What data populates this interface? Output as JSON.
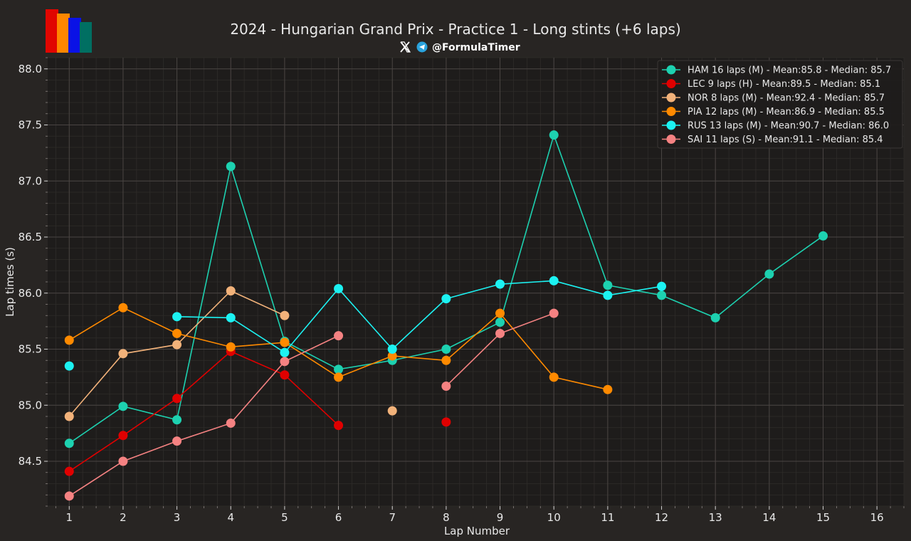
{
  "header": {
    "title": "2024 - Hungarian Grand Prix - Practice 1 - Long stints (+6 laps)",
    "handle": "@FormulaTimer",
    "social_icons": [
      "x-logo-icon",
      "telegram-icon"
    ]
  },
  "colors": {
    "background": "#282523",
    "plot_background": "#1e1c1b",
    "grid_major": "#4a4543",
    "grid_minor": "#2f2c2a",
    "text": "#e8e8e8",
    "logo_bars": [
      "#e10600",
      "#ff8700",
      "#0a12e6",
      "#006f62"
    ]
  },
  "chart_data": {
    "type": "line",
    "title": "2024 - Hungarian Grand Prix - Practice 1 - Long stints (+6 laps)",
    "xlabel": "Lap Number",
    "ylabel": "Lap times (s)",
    "xlim": [
      0.6,
      16.5
    ],
    "ylim": [
      84.1,
      88.1
    ],
    "x_ticks": [
      1,
      2,
      3,
      4,
      5,
      6,
      7,
      8,
      9,
      10,
      11,
      12,
      13,
      14,
      15,
      16
    ],
    "y_ticks": [
      84.5,
      85.0,
      85.5,
      86.0,
      86.5,
      87.0,
      87.5,
      88.0
    ],
    "y_tick_labels": [
      "84.5",
      "85.0",
      "85.5",
      "86.0",
      "86.5",
      "87.0",
      "87.5",
      "88.0"
    ],
    "grid": true,
    "legend_position": "top-right",
    "series": [
      {
        "name": "HAM 16 laps (M) - Mean:85.8 - Median: 85.7",
        "color": "#1dd1b0",
        "points": [
          [
            1,
            84.66
          ],
          [
            2,
            84.99
          ],
          [
            3,
            84.87
          ],
          [
            4,
            87.13
          ],
          [
            5,
            85.57
          ],
          [
            6,
            85.32
          ],
          [
            7,
            85.4
          ],
          [
            8,
            85.5
          ],
          [
            9,
            85.74
          ],
          [
            10,
            87.41
          ],
          [
            11,
            86.07
          ],
          [
            12,
            85.98
          ],
          [
            13,
            85.78
          ],
          [
            14,
            86.17
          ],
          [
            15,
            86.51
          ]
        ]
      },
      {
        "name": "LEC 9 laps (H) - Mean:89.5 - Median: 85.1",
        "color": "#e00000",
        "points": [
          [
            1,
            84.41
          ],
          [
            2,
            84.73
          ],
          [
            3,
            85.06
          ],
          [
            4,
            85.48
          ],
          [
            5,
            85.27
          ],
          [
            6,
            84.82
          ],
          null,
          [
            8,
            84.85
          ]
        ]
      },
      {
        "name": "NOR 8 laps (M) - Mean:92.4 - Median: 85.7",
        "color": "#f2b27a",
        "points": [
          [
            1,
            84.9
          ],
          [
            2,
            85.46
          ],
          [
            3,
            85.54
          ],
          [
            4,
            86.02
          ],
          [
            5,
            85.8
          ],
          null,
          [
            7,
            84.95
          ]
        ]
      },
      {
        "name": "PIA 12 laps (M) - Mean:86.9 - Median: 85.5",
        "color": "#ff8a00",
        "points": [
          [
            1,
            85.58
          ],
          [
            2,
            85.87
          ],
          [
            3,
            85.64
          ],
          [
            4,
            85.52
          ],
          [
            5,
            85.56
          ],
          [
            6,
            85.25
          ],
          [
            7,
            85.44
          ],
          [
            8,
            85.4
          ],
          [
            9,
            85.82
          ],
          [
            10,
            85.25
          ],
          [
            11,
            85.14
          ]
        ]
      },
      {
        "name": "RUS 13 laps (M) - Mean:90.7 - Median: 86.0",
        "color": "#1cf2f2",
        "points": [
          [
            1,
            85.35
          ],
          null,
          [
            3,
            85.79
          ],
          [
            4,
            85.78
          ],
          [
            5,
            85.47
          ],
          [
            6,
            86.04
          ],
          [
            7,
            85.5
          ],
          [
            8,
            85.95
          ],
          [
            9,
            86.08
          ],
          [
            10,
            86.11
          ],
          [
            11,
            85.98
          ],
          [
            12,
            86.06
          ]
        ]
      },
      {
        "name": "SAI 11 laps (S) - Mean:91.1 - Median: 85.4",
        "color": "#f58282",
        "points": [
          [
            1,
            84.19
          ],
          [
            2,
            84.5
          ],
          [
            3,
            84.68
          ],
          [
            4,
            84.84
          ],
          [
            5,
            85.39
          ],
          [
            6,
            85.62
          ],
          null,
          [
            8,
            85.17
          ],
          [
            9,
            85.64
          ],
          [
            10,
            85.82
          ]
        ]
      }
    ]
  }
}
